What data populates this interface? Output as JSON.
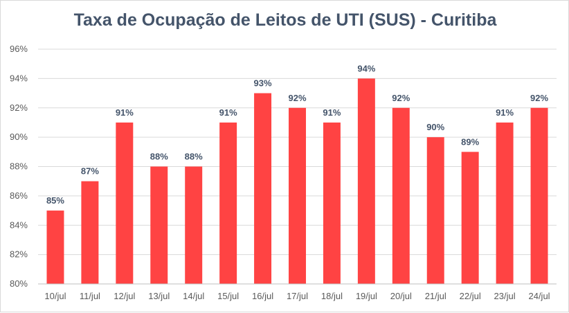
{
  "chart_data": {
    "type": "bar",
    "title": "Taxa de Ocupação de Leitos de UTI (SUS) - Curitiba",
    "xlabel": "",
    "ylabel": "",
    "categories": [
      "10/jul",
      "11/jul",
      "12/jul",
      "13/jul",
      "14/jul",
      "15/jul",
      "16/jul",
      "17/jul",
      "18/jul",
      "19/jul",
      "20/jul",
      "21/jul",
      "22/jul",
      "23/jul",
      "24/jul"
    ],
    "values": [
      85,
      87,
      91,
      88,
      88,
      91,
      93,
      92,
      91,
      94,
      92,
      90,
      89,
      91,
      92
    ],
    "data_labels": [
      "85%",
      "87%",
      "91%",
      "88%",
      "88%",
      "91%",
      "93%",
      "92%",
      "91%",
      "94%",
      "92%",
      "90%",
      "89%",
      "91%",
      "92%"
    ],
    "ylim": [
      80,
      96
    ],
    "yticks": [
      80,
      82,
      84,
      86,
      88,
      90,
      92,
      94,
      96
    ],
    "ytick_labels": [
      "80%",
      "82%",
      "84%",
      "86%",
      "88%",
      "90%",
      "92%",
      "94%",
      "96%"
    ],
    "grid": true,
    "bar_color": "#ff4343",
    "title_color": "#44546a"
  }
}
